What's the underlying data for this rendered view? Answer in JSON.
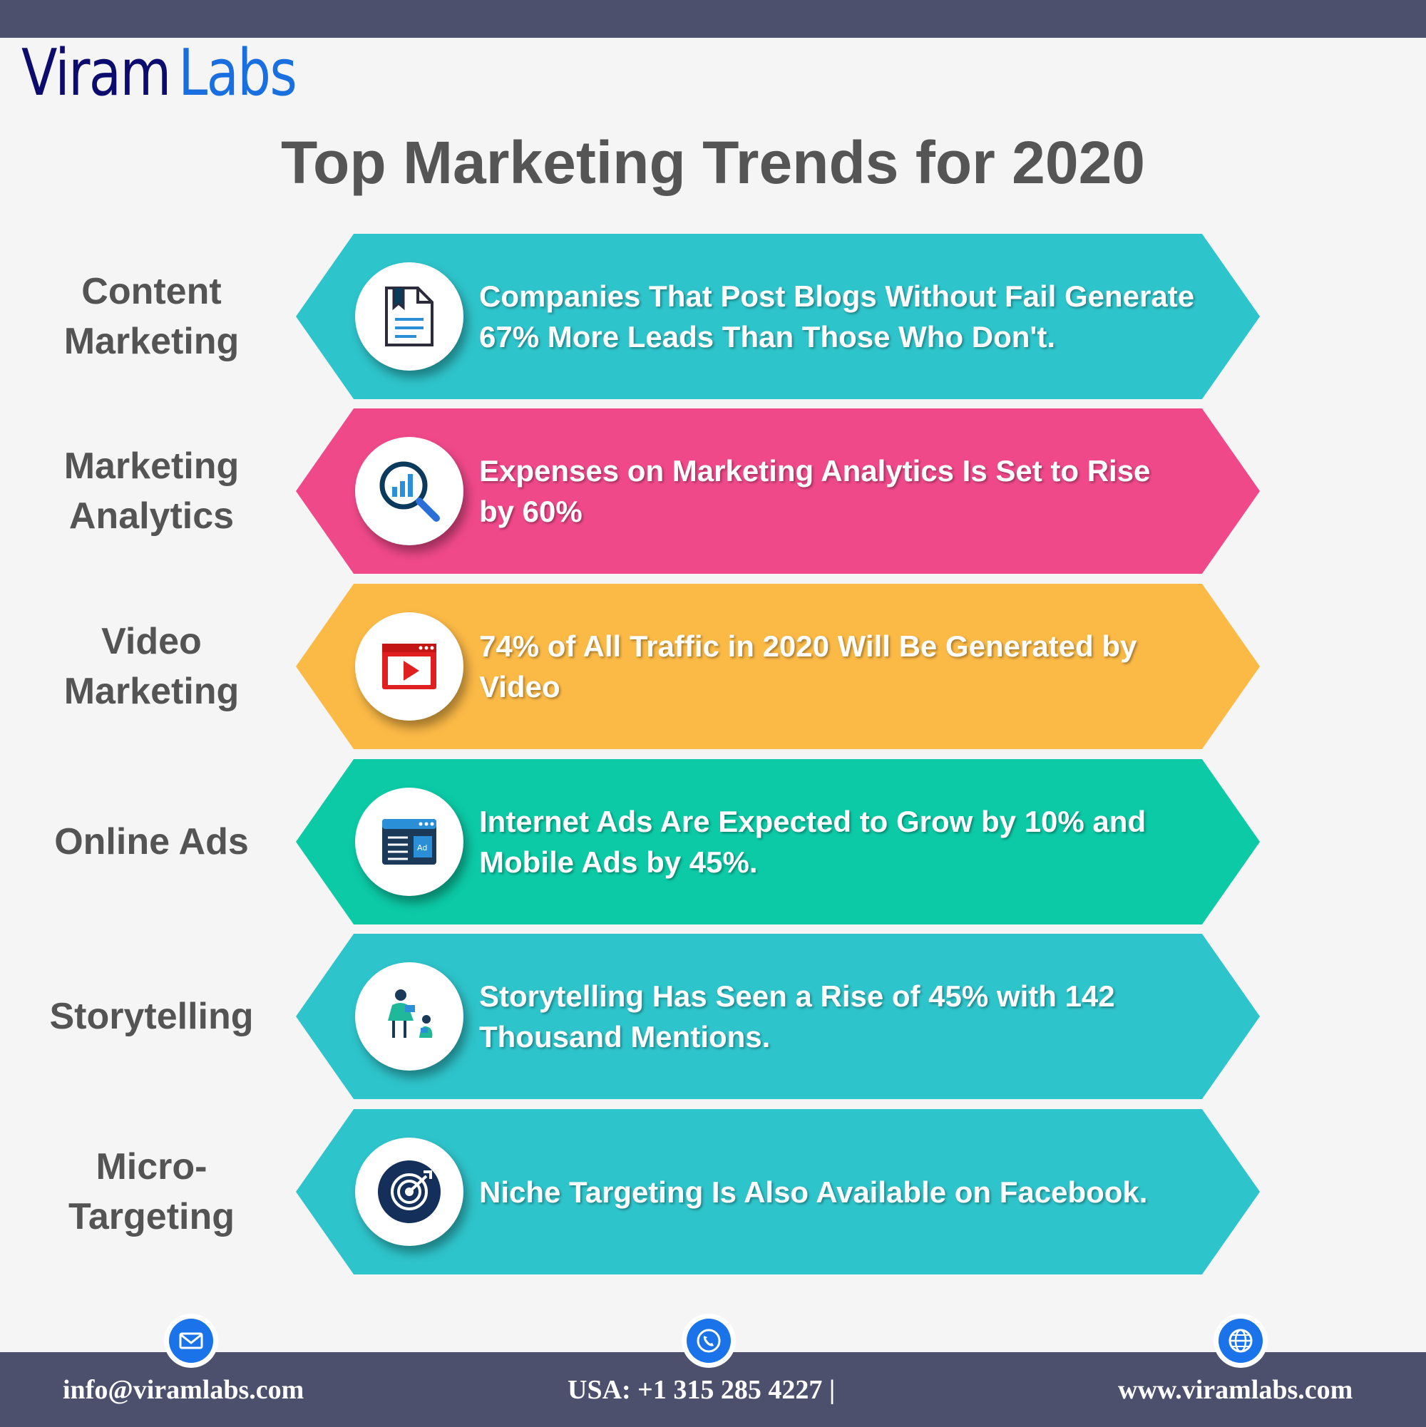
{
  "brand": {
    "part1": "Viram",
    "part2": "Labs"
  },
  "title": "Top Marketing Trends for 2020",
  "colors": {
    "top_bar": "#4c506c",
    "teal": "#2ec4cb",
    "pink": "#f0498a",
    "amber": "#fbb946",
    "green": "#0ccaa6",
    "footer": "#4c506c",
    "title": "#555555",
    "label": "#545454"
  },
  "trends": [
    {
      "label": "Content\nMarketing",
      "text": "Companies That Post Blogs Without Fail Generate\n 67% More Leads Than Those Who Don't.",
      "color": "#2ec4cb",
      "icon": "document-icon"
    },
    {
      "label": "Marketing\nAnalytics",
      "text": "Expenses on Marketing Analytics Is Set to Rise\nby 60%",
      "color": "#f0498a",
      "icon": "analytics-magnifier-icon"
    },
    {
      "label": "Video\nMarketing",
      "text": "74% of All Traffic in 2020  Will Be Generated by\n Video",
      "color": "#fbb946",
      "icon": "video-play-icon"
    },
    {
      "label": "Online Ads",
      "text": "Internet Ads Are Expected to Grow by 10% and\nMobile Ads by 45%.",
      "color": "#0ccaa6",
      "icon": "ad-window-icon"
    },
    {
      "label": "Storytelling",
      "text": "Storytelling Has Seen a Rise of 45% with 142\nThousand Mentions.",
      "color": "#2ec4cb",
      "icon": "storyteller-icon"
    },
    {
      "label": "Micro-\nTargeting",
      "text": "Niche Targeting Is Also Available on Facebook.",
      "color": "#2ec4cb",
      "icon": "target-icon"
    }
  ],
  "footer": {
    "email": "info@viramlabs.com",
    "phone": "USA: +1 315 285 4227 |",
    "website": "www.viramlabs.com",
    "icons": [
      "email-icon",
      "phone-icon",
      "globe-icon"
    ]
  }
}
